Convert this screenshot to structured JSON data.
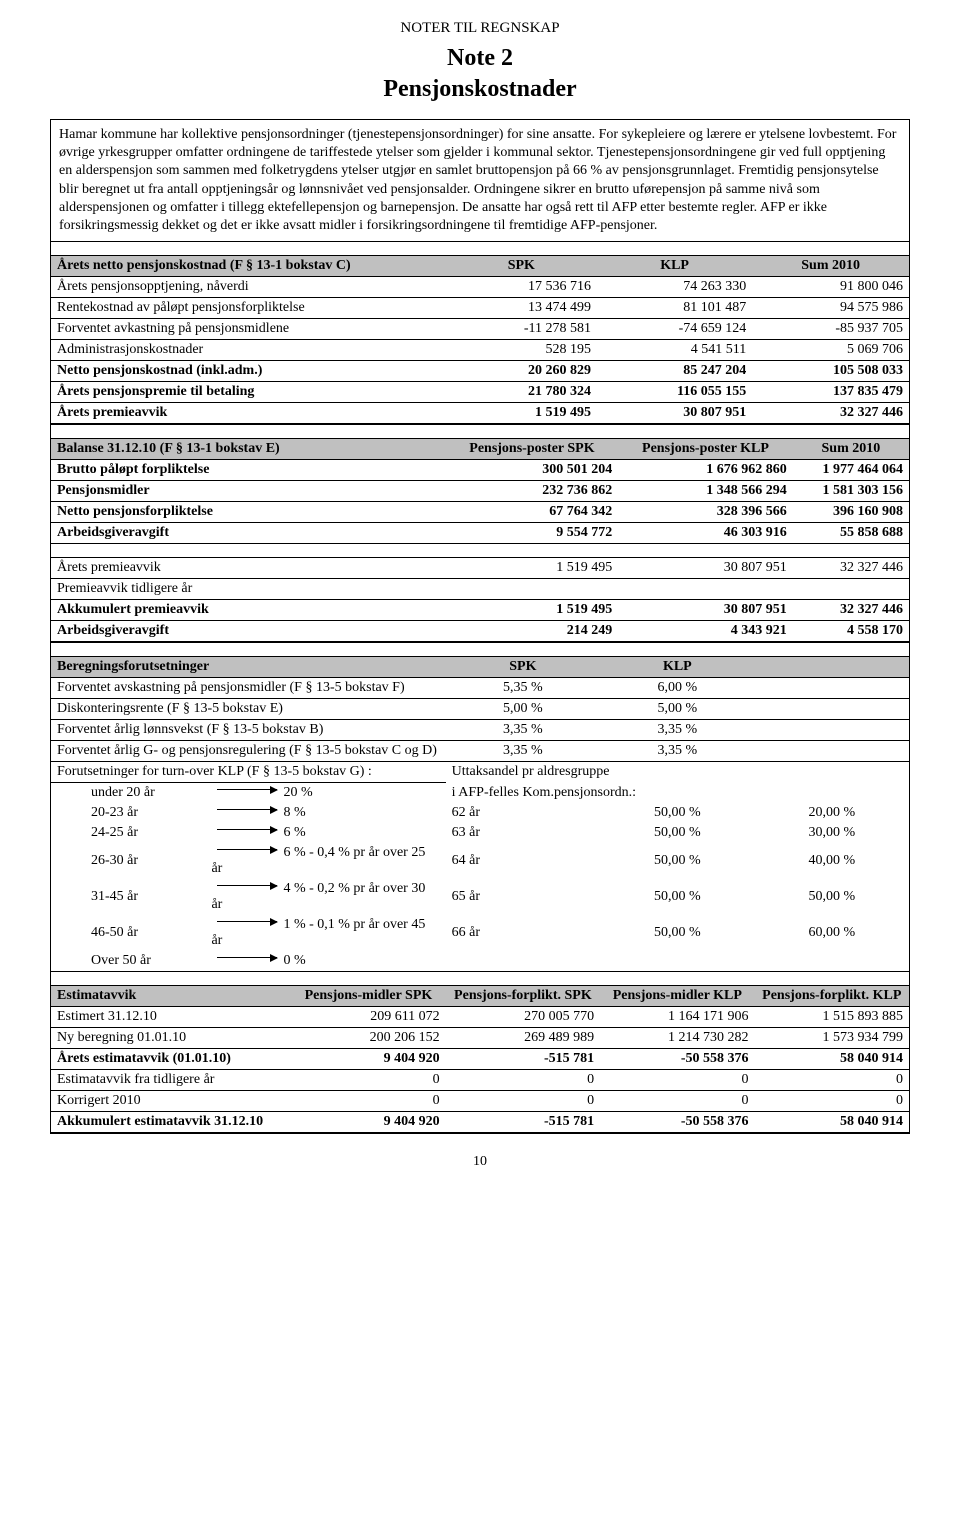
{
  "header": "NOTER TIL REGNSKAP",
  "title": "Note 2",
  "subtitle": "Pensjonskostnader",
  "intro": "Hamar kommune har kollektive pensjonsordninger (tjenestepensjonsordninger) for sine ansatte. For sykepleiere og lærere er ytelsene lovbestemt. For øvrige yrkesgrupper omfatter ordningene de tariffestede ytelser som gjelder i kommunal sektor. Tjenestepensjonsordningene gir ved full opptjening en alderspensjon som sammen med folketrygdens ytelser utgjør en samlet bruttopensjon på 66 % av pensjonsgrunnlaget. Fremtidig pensjonsytelse blir beregnet ut fra antall opptjeningsår og lønnsnivået ved pensjonsalder. Ordningene sikrer en brutto uførepensjon på samme nivå som alderspensjonen og omfatter i tillegg ektefellepensjon og barnepensjon. De ansatte har også rett til AFP etter bestemte regler. AFP er ikke forsikringsmessig dekket og det er ikke avsatt midler i forsikringsordningene til fremtidige AFP-pensjoner.",
  "t1": {
    "head": [
      "Årets netto pensjonskostnad  (F § 13-1 bokstav C)",
      "SPK",
      "KLP",
      "Sum 2010"
    ],
    "rows": [
      {
        "l": "Årets pensjonsopptjening, nåverdi",
        "a": "17 536 716",
        "b": "74 263 330",
        "c": "91 800 046"
      },
      {
        "l": "Rentekostnad av påløpt pensjonsforpliktelse",
        "a": "13 474 499",
        "b": "81 101 487",
        "c": "94 575 986"
      },
      {
        "l": "Forventet avkastning på pensjonsmidlene",
        "a": "-11 278 581",
        "b": "-74 659 124",
        "c": "-85 937 705"
      },
      {
        "l": "Administrasjonskostnader",
        "a": "528 195",
        "b": "4 541 511",
        "c": "5 069 706"
      }
    ],
    "bold_rows": [
      {
        "l": "Netto pensjonskostnad (inkl.adm.)",
        "a": "20 260 829",
        "b": "85 247 204",
        "c": "105 508 033"
      },
      {
        "l": "Årets pensjonspremie til betaling",
        "a": "21 780 324",
        "b": "116 055 155",
        "c": "137 835 479"
      },
      {
        "l": "Årets premieavvik",
        "a": "1 519 495",
        "b": "30 807 951",
        "c": "32 327 446"
      }
    ]
  },
  "t2": {
    "head": [
      "Balanse 31.12.10 (F § 13-1 bokstav E)",
      "Pensjons-poster SPK",
      "Pensjons-poster KLP",
      "Sum 2010"
    ],
    "bold_rows1": [
      {
        "l": "Brutto påløpt forpliktelse",
        "a": "300 501 204",
        "b": "1 676 962 860",
        "c": "1 977 464 064"
      },
      {
        "l": "Pensjonsmidler",
        "a": "232 736 862",
        "b": "1 348 566 294",
        "c": "1 581 303 156"
      },
      {
        "l": "Netto pensjonsforpliktelse",
        "a": "67 764 342",
        "b": "328 396 566",
        "c": "396 160 908"
      },
      {
        "l": "Arbeidsgiveravgift",
        "a": "9 554 772",
        "b": "46 303 916",
        "c": "55 858 688"
      }
    ],
    "rows2": [
      {
        "l": "Årets premieavvik",
        "a": "1 519 495",
        "b": "30 807 951",
        "c": "32 327 446",
        "bold": false
      },
      {
        "l": "Premieavvik tidligere år",
        "a": "",
        "b": "",
        "c": "",
        "bold": false
      },
      {
        "l": "Akkumulert premieavvik",
        "a": "1 519 495",
        "b": "30 807 951",
        "c": "32 327 446",
        "bold": true
      },
      {
        "l": "Arbeidsgiveravgift",
        "a": "214 249",
        "b": "4 343 921",
        "c": "4 558 170",
        "bold": true
      }
    ]
  },
  "t3": {
    "head": [
      "Beregningsforutsetninger",
      "SPK",
      "KLP"
    ],
    "rows": [
      {
        "l": "Forventet avskastning på pensjonsmidler (F § 13-5 bokstav F)",
        "a": "5,35 %",
        "b": "6,00 %"
      },
      {
        "l": "Diskonteringsrente (F § 13-5 bokstav E)",
        "a": "5,00 %",
        "b": "5,00 %"
      },
      {
        "l": "Forventet årlig lønnsvekst (F § 13-5 bokstav B)",
        "a": "3,35 %",
        "b": "3,35 %"
      },
      {
        "l": "Forventet årlig G- og pensjonsregulering (F § 13-5 bokstav C og D)",
        "a": "3,35 %",
        "b": "3,35 %"
      }
    ],
    "turn_label": "Forutsetninger for turn-over KLP (F § 13-5 bokstav G) :",
    "uttak_label": "Uttaksandel pr aldresgruppe",
    "afp_label": "i AFP-felles Kom.pensjonsordn.:",
    "turn_rows": [
      {
        "age": "under 20 år",
        "pct": "20 %",
        "u_age": "",
        "u_a": "",
        "u_b": ""
      },
      {
        "age": "20-23 år",
        "pct": "8 %",
        "u_age": "62 år",
        "u_a": "50,00 %",
        "u_b": "20,00 %"
      },
      {
        "age": "24-25 år",
        "pct": "6 %",
        "u_age": "63 år",
        "u_a": "50,00 %",
        "u_b": "30,00 %"
      },
      {
        "age": "26-30 år",
        "pct": "6 % - 0,4 % pr år over 25 år",
        "u_age": "64 år",
        "u_a": "50,00 %",
        "u_b": "40,00 %"
      },
      {
        "age": "31-45 år",
        "pct": "4 % - 0,2 % pr år over 30 år",
        "u_age": "65 år",
        "u_a": "50,00 %",
        "u_b": "50,00 %"
      },
      {
        "age": "46-50 år",
        "pct": "1 % - 0,1 % pr år over 45 år",
        "u_age": "66 år",
        "u_a": "50,00 %",
        "u_b": "60,00 %"
      },
      {
        "age": "Over 50 år",
        "pct": "0 %",
        "u_age": "",
        "u_a": "",
        "u_b": ""
      }
    ]
  },
  "t4": {
    "head": [
      "Estimatavvik",
      "Pensjons-midler SPK",
      "Pensjons-forplikt. SPK",
      "Pensjons-midler KLP",
      "Pensjons-forplikt. KLP"
    ],
    "rows": [
      {
        "l": "Estimert 31.12.10",
        "a": "209 611 072",
        "b": "270 005 770",
        "c": "1 164 171 906",
        "d": "1 515 893 885"
      },
      {
        "l": "Ny beregning 01.01.10",
        "a": "200 206 152",
        "b": "269 489 989",
        "c": "1 214 730 282",
        "d": "1 573 934 799"
      }
    ],
    "bold_row": {
      "l": "Årets estimatavvik (01.01.10)",
      "a": "9 404 920",
      "b": "-515 781",
      "c": "-50 558 376",
      "d": "58 040 914"
    },
    "rows2": [
      {
        "l": "Estimatavvik fra tidligere år",
        "a": "0",
        "b": "0",
        "c": "0",
        "d": "0"
      },
      {
        "l": "Korrigert 2010",
        "a": "0",
        "b": "0",
        "c": "0",
        "d": "0"
      }
    ],
    "bold_row2": {
      "l": "Akkumulert estimatavvik 31.12.10",
      "a": "9 404 920",
      "b": "-515 781",
      "c": "-50 558 376",
      "d": "58 040 914"
    }
  },
  "page_num": "10"
}
